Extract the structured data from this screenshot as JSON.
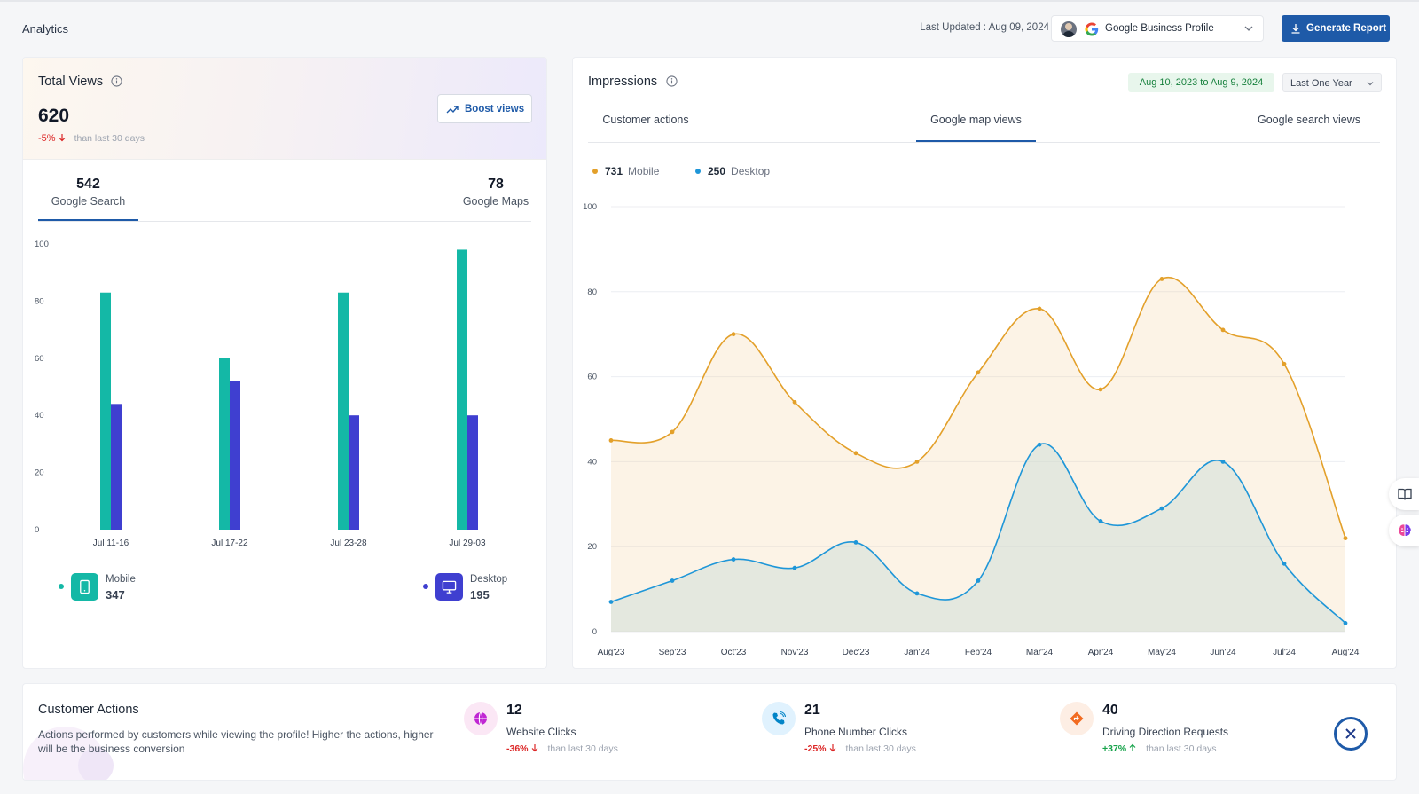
{
  "header": {
    "title": "Analytics",
    "last_updated": "Last Updated : Aug 09, 2024",
    "profile_select": "Google Business Profile",
    "generate_report": "Generate Report"
  },
  "total_views": {
    "title": "Total Views",
    "value": "620",
    "change": "-5%",
    "change_sub": "than last 30 days",
    "boost_label": "Boost views",
    "tabs": [
      {
        "value": "542",
        "label": "Google Search"
      },
      {
        "value": "78",
        "label": "Google Maps"
      }
    ],
    "legend": [
      {
        "label": "Mobile",
        "value": "347"
      },
      {
        "label": "Desktop",
        "value": "195"
      }
    ]
  },
  "impressions": {
    "title": "Impressions",
    "date_range": "Aug 10, 2023 to Aug 9, 2024",
    "period": "Last One Year",
    "tabs": [
      "Customer actions",
      "Google map views",
      "Google search views"
    ],
    "legend": [
      {
        "value": "731",
        "label": "Mobile"
      },
      {
        "value": "250",
        "label": "Desktop"
      }
    ]
  },
  "customer_actions": {
    "title": "Customer Actions",
    "description": "Actions performed by customers while viewing the profile! Higher the actions, higher will be the business conversion",
    "metrics": [
      {
        "value": "12",
        "label": "Website Clicks",
        "change": "-36%",
        "sub": "than last 30 days"
      },
      {
        "value": "21",
        "label": "Phone Number Clicks",
        "change": "-25%",
        "sub": "than last 30 days"
      },
      {
        "value": "40",
        "label": "Driving Direction Requests",
        "change": "+37%",
        "sub": "than last 30 days"
      }
    ]
  },
  "colors": {
    "accent": "#1e5aa8",
    "mobile_bar": "#14b8a6",
    "desktop_bar": "#3f3fd0",
    "mobile_line": "#e3a02a",
    "desktop_line": "#1e96d8"
  },
  "chart_data": [
    {
      "type": "bar",
      "title": "Google Search views",
      "categories": [
        "Jul 11-16",
        "Jul 17-22",
        "Jul 23-28",
        "Jul 29-03"
      ],
      "series": [
        {
          "name": "Mobile",
          "values": [
            83,
            60,
            83,
            98
          ]
        },
        {
          "name": "Desktop",
          "values": [
            44,
            52,
            40,
            40
          ]
        }
      ],
      "ylim": [
        0,
        100
      ],
      "yticks": [
        0,
        20,
        40,
        60,
        80,
        100
      ]
    },
    {
      "type": "area",
      "title": "Google map views",
      "categories": [
        "Aug'23",
        "Sep'23",
        "Oct'23",
        "Nov'23",
        "Dec'23",
        "Jan'24",
        "Feb'24",
        "Mar'24",
        "Apr'24",
        "May'24",
        "Jun'24",
        "Jul'24",
        "Aug'24"
      ],
      "series": [
        {
          "name": "Mobile",
          "values": [
            45,
            47,
            70,
            54,
            42,
            40,
            61,
            76,
            57,
            83,
            71,
            63,
            22
          ]
        },
        {
          "name": "Desktop",
          "values": [
            7,
            12,
            17,
            15,
            21,
            9,
            12,
            44,
            26,
            29,
            40,
            16,
            2
          ]
        }
      ],
      "ylim": [
        0,
        100
      ],
      "yticks": [
        0,
        20,
        40,
        60,
        80,
        100
      ]
    }
  ]
}
